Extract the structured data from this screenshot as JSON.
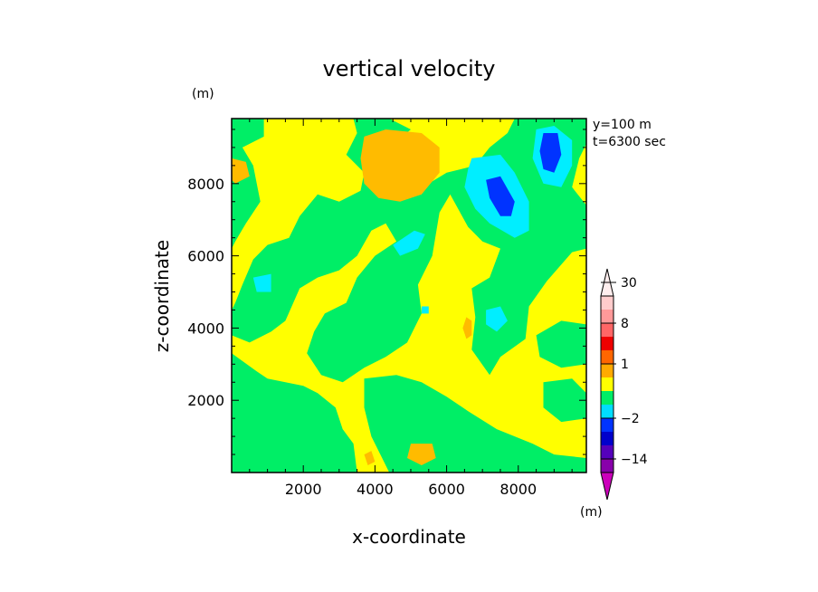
{
  "chart_data": {
    "type": "heatmap",
    "title": "vertical velocity",
    "xlabel": "x-coordinate",
    "ylabel": "z-coordinate",
    "y_unit": "(m)",
    "colorbar_unit": "(m)",
    "annotation_lines": [
      "y=100 m",
      "t=6300 sec"
    ],
    "xlim": [
      0,
      9900
    ],
    "ylim": [
      0,
      9800
    ],
    "x_ticks": [
      2000,
      4000,
      6000,
      8000
    ],
    "y_ticks": [
      2000,
      4000,
      6000,
      8000
    ],
    "colorbar_labels": [
      {
        "value": 30,
        "text": "30"
      },
      {
        "value": 8,
        "text": "8"
      },
      {
        "value": 1,
        "text": "1"
      },
      {
        "value": -2,
        "text": "−2"
      },
      {
        "value": -14,
        "text": "−14"
      }
    ],
    "colorbar_levels": [
      -14,
      -8,
      -5,
      -2,
      -1,
      -0.5,
      0.5,
      1,
      2,
      5,
      8,
      14,
      20,
      30
    ],
    "colorbar_colors": [
      "#cc00bb",
      "#8800aa",
      "#5500bb",
      "#0000cc",
      "#0033ff",
      "#00ddff",
      "#00ee66",
      "#ffff00",
      "#ffaa00",
      "#ff6600",
      "#ee0000",
      "#ff6666",
      "#ff9999",
      "#ffcccc",
      "#ffeeee"
    ],
    "field_background": {
      "level": "0.5 to 1",
      "color": "#ffff00"
    },
    "regions": [
      {
        "level": "-0.5 to 0.5",
        "color": "#00ee66",
        "polygon": [
          [
            0,
            9800
          ],
          [
            900,
            9800
          ],
          [
            900,
            9300
          ],
          [
            300,
            9000
          ],
          [
            600,
            8500
          ],
          [
            800,
            7500
          ],
          [
            400,
            6900
          ],
          [
            100,
            6400
          ],
          [
            0,
            6200
          ]
        ]
      },
      {
        "level": "-0.5 to 0.5",
        "color": "#00ee66",
        "polygon": [
          [
            1200,
            9800
          ],
          [
            3400,
            9800
          ],
          [
            3500,
            9400
          ],
          [
            3200,
            8800
          ],
          [
            3700,
            8300
          ],
          [
            3600,
            7800
          ],
          [
            3000,
            7500
          ],
          [
            2400,
            7700
          ],
          [
            1900,
            7100
          ],
          [
            1600,
            6500
          ],
          [
            1000,
            6300
          ],
          [
            600,
            5900
          ],
          [
            300,
            5200
          ],
          [
            100,
            4700
          ],
          [
            0,
            4500
          ],
          [
            0,
            3800
          ],
          [
            500,
            3600
          ],
          [
            1100,
            3900
          ],
          [
            1500,
            4200
          ],
          [
            1900,
            5100
          ],
          [
            2400,
            5400
          ],
          [
            3000,
            5600
          ],
          [
            3500,
            6000
          ],
          [
            3900,
            6700
          ],
          [
            4300,
            6900
          ],
          [
            4600,
            6400
          ],
          [
            4000,
            6000
          ],
          [
            3500,
            5400
          ],
          [
            3200,
            4700
          ],
          [
            2600,
            4400
          ],
          [
            2300,
            3900
          ],
          [
            2100,
            3300
          ],
          [
            2500,
            2700
          ],
          [
            3100,
            2500
          ],
          [
            3700,
            2900
          ],
          [
            4300,
            3200
          ],
          [
            4900,
            3600
          ],
          [
            5300,
            4400
          ],
          [
            5200,
            5200
          ],
          [
            5600,
            6000
          ],
          [
            5800,
            7200
          ],
          [
            6100,
            7700
          ],
          [
            6600,
            6800
          ],
          [
            7000,
            6400
          ],
          [
            7500,
            6200
          ],
          [
            7200,
            5400
          ],
          [
            6700,
            5100
          ],
          [
            6800,
            4300
          ],
          [
            6700,
            3400
          ],
          [
            7200,
            2700
          ],
          [
            7500,
            3200
          ],
          [
            8200,
            3700
          ],
          [
            8300,
            4600
          ],
          [
            8800,
            5300
          ],
          [
            9500,
            6100
          ],
          [
            9900,
            6200
          ],
          [
            9900,
            7400
          ],
          [
            9500,
            7900
          ],
          [
            9700,
            8700
          ],
          [
            9900,
            9100
          ],
          [
            9900,
            9800
          ],
          [
            7900,
            9800
          ],
          [
            7700,
            9400
          ],
          [
            7200,
            9000
          ],
          [
            6800,
            8500
          ],
          [
            6000,
            8300
          ],
          [
            5500,
            8000
          ],
          [
            4800,
            8500
          ],
          [
            4400,
            9000
          ],
          [
            5000,
            9500
          ],
          [
            4400,
            9800
          ],
          [
            3600,
            9800
          ]
        ]
      },
      {
        "level": "-0.5 to 0.5",
        "color": "#00ee66",
        "polygon": [
          [
            0,
            3300
          ],
          [
            700,
            2800
          ],
          [
            1000,
            2600
          ],
          [
            2000,
            2400
          ],
          [
            2400,
            2200
          ],
          [
            2900,
            1800
          ],
          [
            3100,
            1200
          ],
          [
            3400,
            800
          ],
          [
            3500,
            0
          ],
          [
            0,
            0
          ]
        ]
      },
      {
        "level": "-0.5 to 0.5",
        "color": "#00ee66",
        "polygon": [
          [
            3700,
            2600
          ],
          [
            4600,
            2700
          ],
          [
            5300,
            2500
          ],
          [
            6000,
            2100
          ],
          [
            6600,
            1700
          ],
          [
            7400,
            1200
          ],
          [
            8400,
            800
          ],
          [
            9000,
            500
          ],
          [
            9900,
            400
          ],
          [
            9900,
            0
          ],
          [
            4400,
            0
          ],
          [
            4200,
            400
          ],
          [
            3900,
            1000
          ],
          [
            3700,
            1800
          ]
        ]
      },
      {
        "level": "-0.5 to 0.5",
        "color": "#00ee66",
        "polygon": [
          [
            6900,
            4800
          ],
          [
            7600,
            5100
          ],
          [
            8000,
            4300
          ],
          [
            7800,
            3700
          ],
          [
            7200,
            3500
          ]
        ]
      },
      {
        "level": "-0.5 to 0.5",
        "color": "#00ee66",
        "polygon": [
          [
            8500,
            3800
          ],
          [
            9200,
            4200
          ],
          [
            9900,
            4100
          ],
          [
            9900,
            3000
          ],
          [
            9200,
            2900
          ],
          [
            8600,
            3200
          ]
        ]
      },
      {
        "level": "-0.5 to 0.5",
        "color": "#00ee66",
        "polygon": [
          [
            8700,
            2500
          ],
          [
            9500,
            2600
          ],
          [
            9900,
            2200
          ],
          [
            9900,
            1500
          ],
          [
            9200,
            1400
          ],
          [
            8700,
            1800
          ]
        ]
      },
      {
        "level": "1 to 2",
        "color": "#ffbb00",
        "polygon": [
          [
            3700,
            9300
          ],
          [
            4300,
            9500
          ],
          [
            5300,
            9400
          ],
          [
            5800,
            9000
          ],
          [
            5800,
            8300
          ],
          [
            5300,
            7700
          ],
          [
            4700,
            7500
          ],
          [
            4100,
            7600
          ],
          [
            3700,
            8000
          ],
          [
            3600,
            8700
          ]
        ]
      },
      {
        "level": "1 to 2",
        "color": "#ffbb00",
        "polygon": [
          [
            0,
            8700
          ],
          [
            400,
            8600
          ],
          [
            500,
            8200
          ],
          [
            100,
            8000
          ],
          [
            0,
            8100
          ]
        ]
      },
      {
        "level": "1 to 2",
        "color": "#ffbb00",
        "polygon": [
          [
            6550,
            4300
          ],
          [
            6700,
            4200
          ],
          [
            6700,
            3800
          ],
          [
            6550,
            3700
          ],
          [
            6450,
            4000
          ]
        ]
      },
      {
        "level": "1 to 2",
        "color": "#ffbb00",
        "polygon": [
          [
            5000,
            800
          ],
          [
            5600,
            800
          ],
          [
            5700,
            400
          ],
          [
            5300,
            200
          ],
          [
            4900,
            400
          ]
        ]
      },
      {
        "level": "1 to 2",
        "color": "#ffbb00",
        "polygon": [
          [
            3700,
            500
          ],
          [
            3900,
            600
          ],
          [
            4000,
            300
          ],
          [
            3800,
            200
          ]
        ]
      },
      {
        "level": "-1 to -0.5",
        "color": "#00eeff",
        "polygon": [
          [
            6700,
            8700
          ],
          [
            7500,
            8800
          ],
          [
            7900,
            8300
          ],
          [
            8300,
            7500
          ],
          [
            8300,
            6700
          ],
          [
            7900,
            6500
          ],
          [
            7200,
            6900
          ],
          [
            6800,
            7300
          ],
          [
            6500,
            7900
          ],
          [
            6600,
            8400
          ]
        ]
      },
      {
        "level": "-1 to -0.5",
        "color": "#00eeff",
        "polygon": [
          [
            8500,
            9500
          ],
          [
            9000,
            9600
          ],
          [
            9500,
            9200
          ],
          [
            9500,
            8500
          ],
          [
            9200,
            7900
          ],
          [
            8700,
            8000
          ],
          [
            8400,
            8700
          ]
        ]
      },
      {
        "level": "-1 to -0.5",
        "color": "#00eeff",
        "polygon": [
          [
            4500,
            6300
          ],
          [
            5100,
            6700
          ],
          [
            5400,
            6600
          ],
          [
            5200,
            6200
          ],
          [
            4700,
            6000
          ]
        ]
      },
      {
        "level": "-1 to -0.5",
        "color": "#00eeff",
        "polygon": [
          [
            600,
            5400
          ],
          [
            1100,
            5500
          ],
          [
            1100,
            5000
          ],
          [
            700,
            5000
          ]
        ]
      },
      {
        "level": "-1 to -0.5",
        "color": "#00eeff",
        "polygon": [
          [
            7100,
            4500
          ],
          [
            7500,
            4600
          ],
          [
            7700,
            4200
          ],
          [
            7400,
            3900
          ],
          [
            7100,
            4100
          ]
        ]
      },
      {
        "level": "-1 to -0.5",
        "color": "#00eeff",
        "polygon": [
          [
            5300,
            4600
          ],
          [
            5500,
            4600
          ],
          [
            5500,
            4400
          ],
          [
            5300,
            4400
          ]
        ]
      },
      {
        "level": "-2 to -1",
        "color": "#0033ff",
        "polygon": [
          [
            7100,
            8100
          ],
          [
            7500,
            8200
          ],
          [
            7900,
            7500
          ],
          [
            7800,
            7100
          ],
          [
            7500,
            7100
          ],
          [
            7200,
            7600
          ]
        ]
      },
      {
        "level": "-2 to -1",
        "color": "#0033ff",
        "polygon": [
          [
            8700,
            9400
          ],
          [
            9100,
            9400
          ],
          [
            9200,
            8800
          ],
          [
            9000,
            8300
          ],
          [
            8700,
            8400
          ],
          [
            8600,
            8900
          ]
        ]
      }
    ]
  }
}
